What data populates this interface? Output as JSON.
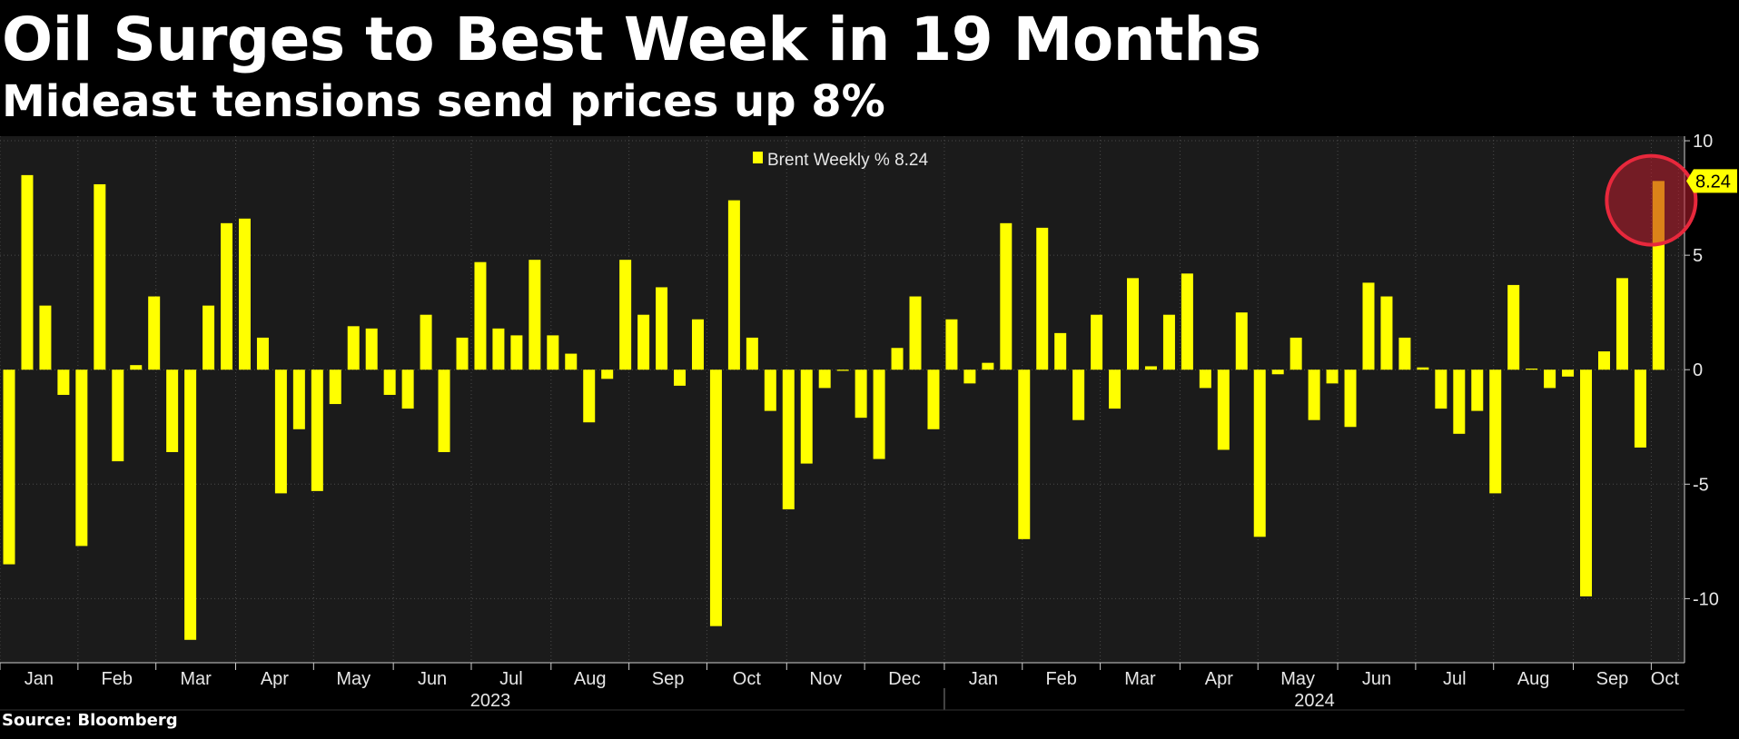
{
  "title": "Oil Surges to Best Week in 19 Months",
  "subtitle": "Mideast tensions send prices up 8%",
  "source": "Source: Bloomberg",
  "colors": {
    "bar": "#ffff00",
    "background": "#1b1b1b",
    "page": "#000000",
    "highlight": "#e8283c",
    "last_label_bg": "#ffff00"
  },
  "chart_data": {
    "type": "bar",
    "legend": "Brent Weekly % 8.24",
    "legend_position": "top-center",
    "last_value_label": "8.24",
    "ylim": [
      -12.8,
      10.2
    ],
    "y_ticks": [
      10,
      5,
      0,
      -5,
      -10
    ],
    "y_tick_labels": [
      "10",
      "5",
      "0",
      "-5",
      "-10"
    ],
    "grid": true,
    "month_labels": [
      "Jan",
      "Feb",
      "Mar",
      "Apr",
      "May",
      "Jun",
      "Jul",
      "Aug",
      "Sep",
      "Oct",
      "Nov",
      "Dec",
      "Jan",
      "Feb",
      "Mar",
      "Apr",
      "May",
      "Jun",
      "Jul",
      "Aug",
      "Sep",
      "Oct"
    ],
    "year_labels": [
      "2023",
      "2024"
    ],
    "series": [
      {
        "name": "Brent Weekly %",
        "values": [
          -8.5,
          8.5,
          2.8,
          -1.1,
          -7.7,
          8.1,
          -4.0,
          0.2,
          3.2,
          -3.6,
          -11.8,
          2.8,
          6.4,
          6.6,
          1.4,
          -5.4,
          -2.6,
          -5.3,
          -1.5,
          1.9,
          1.8,
          -1.1,
          -1.7,
          2.4,
          -3.6,
          1.4,
          4.7,
          1.8,
          1.5,
          4.8,
          1.5,
          0.7,
          -2.3,
          -0.4,
          4.8,
          2.4,
          3.6,
          -0.7,
          2.2,
          -11.2,
          7.4,
          1.4,
          -1.8,
          -6.1,
          -4.1,
          -0.8,
          -0.05,
          -2.1,
          -3.9,
          0.95,
          3.2,
          -2.6,
          2.2,
          -0.6,
          0.3,
          6.4,
          -7.4,
          6.2,
          1.6,
          -2.2,
          2.4,
          -1.7,
          4.0,
          0.15,
          2.4,
          4.2,
          -0.8,
          -3.5,
          2.5,
          -7.3,
          -0.2,
          1.4,
          -2.2,
          -0.6,
          -2.5,
          3.8,
          3.2,
          1.4,
          0.1,
          -1.7,
          -2.8,
          -1.8,
          -5.4,
          3.7,
          0.05,
          -0.8,
          -0.3,
          -9.9,
          0.8,
          4.0,
          -3.4,
          8.24
        ]
      }
    ]
  }
}
